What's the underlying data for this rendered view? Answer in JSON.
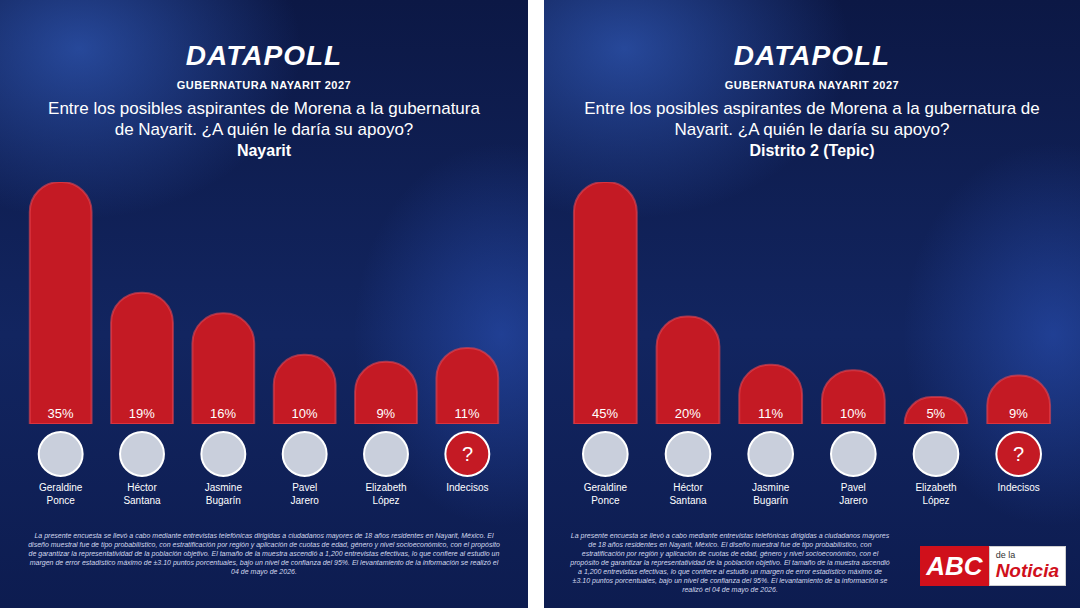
{
  "header": {
    "brand": "DATAPOLL",
    "title": "GUBERNATURA NAYARIT 2027"
  },
  "footnote": "La presente encuesta se llevó a cabo mediante entrevistas telefónicas dirigidas a ciudadanos mayores de 18 años residentes en Nayarit, México. El diseño muestral fue de tipo probabilístico, con estratificación por región y aplicación de cuotas de edad, género y nivel socioeconómico, con el propósito de garantizar la representatividad de la población objetivo. El tamaño de la muestra ascendió a 1,200 entrevistas efectivas, lo que confiere al estudio un margen de error estadístico máximo de ±3.10 puntos porcentuales, bajo un nivel de confianza del 95%. El levantamiento de la información se realizó el 04 de mayo de 2026.",
  "undecided_symbol": "?",
  "watermark": [
    "ABC",
    "de la",
    "Noticia"
  ],
  "chart_data": [
    {
      "type": "bar",
      "title": "Entre los posibles aspirantes de Morena a la gubernatura de Nayarit. ¿A quién le daría su apoyo?",
      "subtitle": "Nayarit",
      "categories": [
        "Geraldine Ponce",
        "Héctor Santana",
        "Jasmine Bugarín",
        "Pavel Jarero",
        "Elizabeth López",
        "Indecisos"
      ],
      "values": [
        35,
        19,
        16,
        10,
        9,
        11
      ],
      "value_labels": [
        "35%",
        "19%",
        "16%",
        "10%",
        "9%",
        "11%"
      ],
      "color": "#c41a24",
      "ylim": [
        0,
        35
      ],
      "data_labels": true,
      "tick_labels": "x"
    },
    {
      "type": "bar",
      "title": "Entre los posibles aspirantes de Morena a la gubernatura de Nayarit. ¿A quién le daría su apoyo?",
      "subtitle": "Distrito 2 (Tepic)",
      "categories": [
        "Geraldine Ponce",
        "Héctor Santana",
        "Jasmine Bugarín",
        "Pavel Jarero",
        "Elizabeth López",
        "Indecisos"
      ],
      "values": [
        45,
        20,
        11,
        10,
        5,
        9
      ],
      "value_labels": [
        "45%",
        "20%",
        "11%",
        "10%",
        "5%",
        "9%"
      ],
      "color": "#c41a24",
      "ylim": [
        0,
        45
      ],
      "data_labels": true,
      "tick_labels": "x"
    }
  ]
}
